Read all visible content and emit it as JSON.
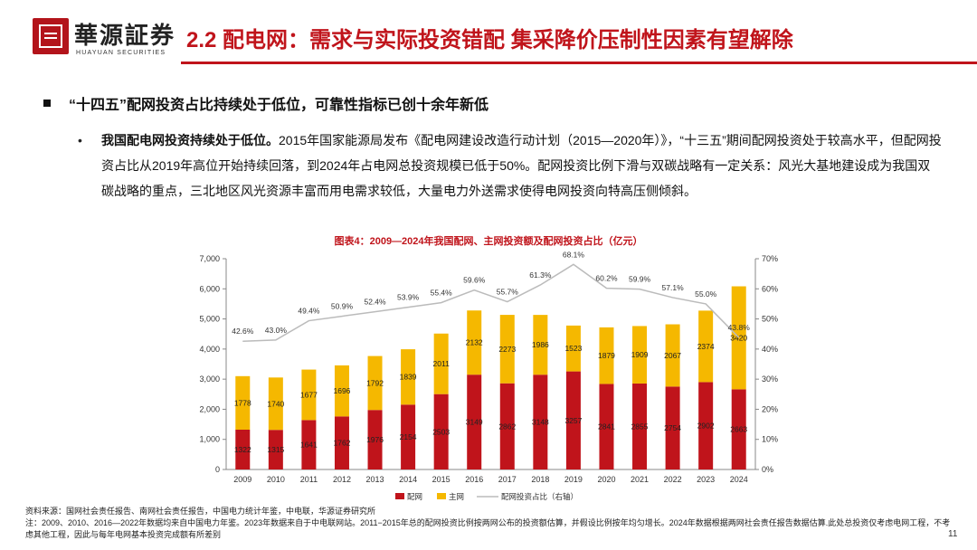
{
  "header": {
    "logo_cn": "華源証券",
    "logo_en": "HUAYUAN SECURITIES",
    "title": "2.2 配电网：需求与实际投资错配 集采降价压制性因素有望解除"
  },
  "bullet": {
    "heading": "“十四五”配网投资占比持续处于低位，可靠性指标已创十余年新低",
    "dot": "•",
    "bold_lead": "我国配电网投资持续处于低位。",
    "body": "2015年国家能源局发布《配电网建设改造行动计划（2015—2020年）》，“十三五”期间配网投资处于较高水平，但配网投资占比从2019年高位开始持续回落，到2024年占电网总投资规模已低于50%。配网投资比例下滑与双碳战略有一定关系：风光大基地建设成为我国双碳战略的重点，三北地区风光资源丰富而用电需求较低，大量电力外送需求使得电网投资向特高压侧倾斜。"
  },
  "chart_data": {
    "type": "bar",
    "title": "图表4：2009—2024年我国配网、主网投资额及配网投资占比（亿元）",
    "categories": [
      "2009",
      "2010",
      "2011",
      "2012",
      "2013",
      "2014",
      "2015",
      "2016",
      "2017",
      "2018",
      "2019",
      "2020",
      "2021",
      "2022",
      "2023",
      "2024"
    ],
    "series": [
      {
        "name": "配网",
        "kind": "stacked-bar",
        "color": "#c0141b",
        "values": [
          1322,
          1315,
          1641,
          1762,
          1976,
          2154,
          2503,
          3149,
          2862,
          3148,
          3257,
          2841,
          2855,
          2754,
          2902,
          2663
        ]
      },
      {
        "name": "主网",
        "kind": "stacked-bar",
        "color": "#f5b800",
        "values": [
          1778,
          1740,
          1677,
          1696,
          1792,
          1839,
          2011,
          2132,
          2273,
          1986,
          1523,
          1879,
          1909,
          2067,
          2374,
          3420
        ]
      },
      {
        "name": "配网投资占比（右轴）",
        "kind": "line",
        "axis": "right",
        "color": "#bbbbbb",
        "values": [
          42.6,
          43.0,
          49.4,
          50.9,
          52.4,
          53.9,
          55.4,
          59.6,
          55.7,
          61.3,
          68.1,
          60.2,
          59.9,
          57.1,
          55.0,
          43.8
        ],
        "labels": [
          "42.6%",
          "43.0%",
          "49.4%",
          "50.9%",
          "52.4%",
          "53.9%",
          "55.4%",
          "59.6%",
          "55.7%",
          "61.3%",
          "68.1%",
          "60.2%",
          "59.9%",
          "57.1%",
          "55.0%",
          "43.8%"
        ]
      }
    ],
    "y_left": {
      "min": 0,
      "max": 7000,
      "ticks": [
        "0",
        "1,000",
        "2,000",
        "3,000",
        "4,000",
        "5,000",
        "6,000",
        "7,000"
      ]
    },
    "y_right": {
      "min": 0,
      "max": 70,
      "ticks": [
        "0%",
        "10%",
        "20%",
        "30%",
        "40%",
        "50%",
        "60%",
        "70%"
      ]
    },
    "legend_position": "bottom",
    "grid": false
  },
  "footer": {
    "source": "资料来源：国网社会责任报告、南网社会责任报告，中国电力统计年鉴，中电联，华源证券研究所",
    "note": "注：2009、2010、2016—2022年数据均来自中国电力年鉴。2023年数据来自于中电联网站。2011−2015年总的配网投资比例按两网公布的投资额估算，并假设比例按年均匀增长。2024年数据根据两网社会责任报告数据估算.此处总投资仅考虑电网工程，不考虑其他工程，因此与每年电网基本投资完成额有所差别",
    "page": "11"
  }
}
